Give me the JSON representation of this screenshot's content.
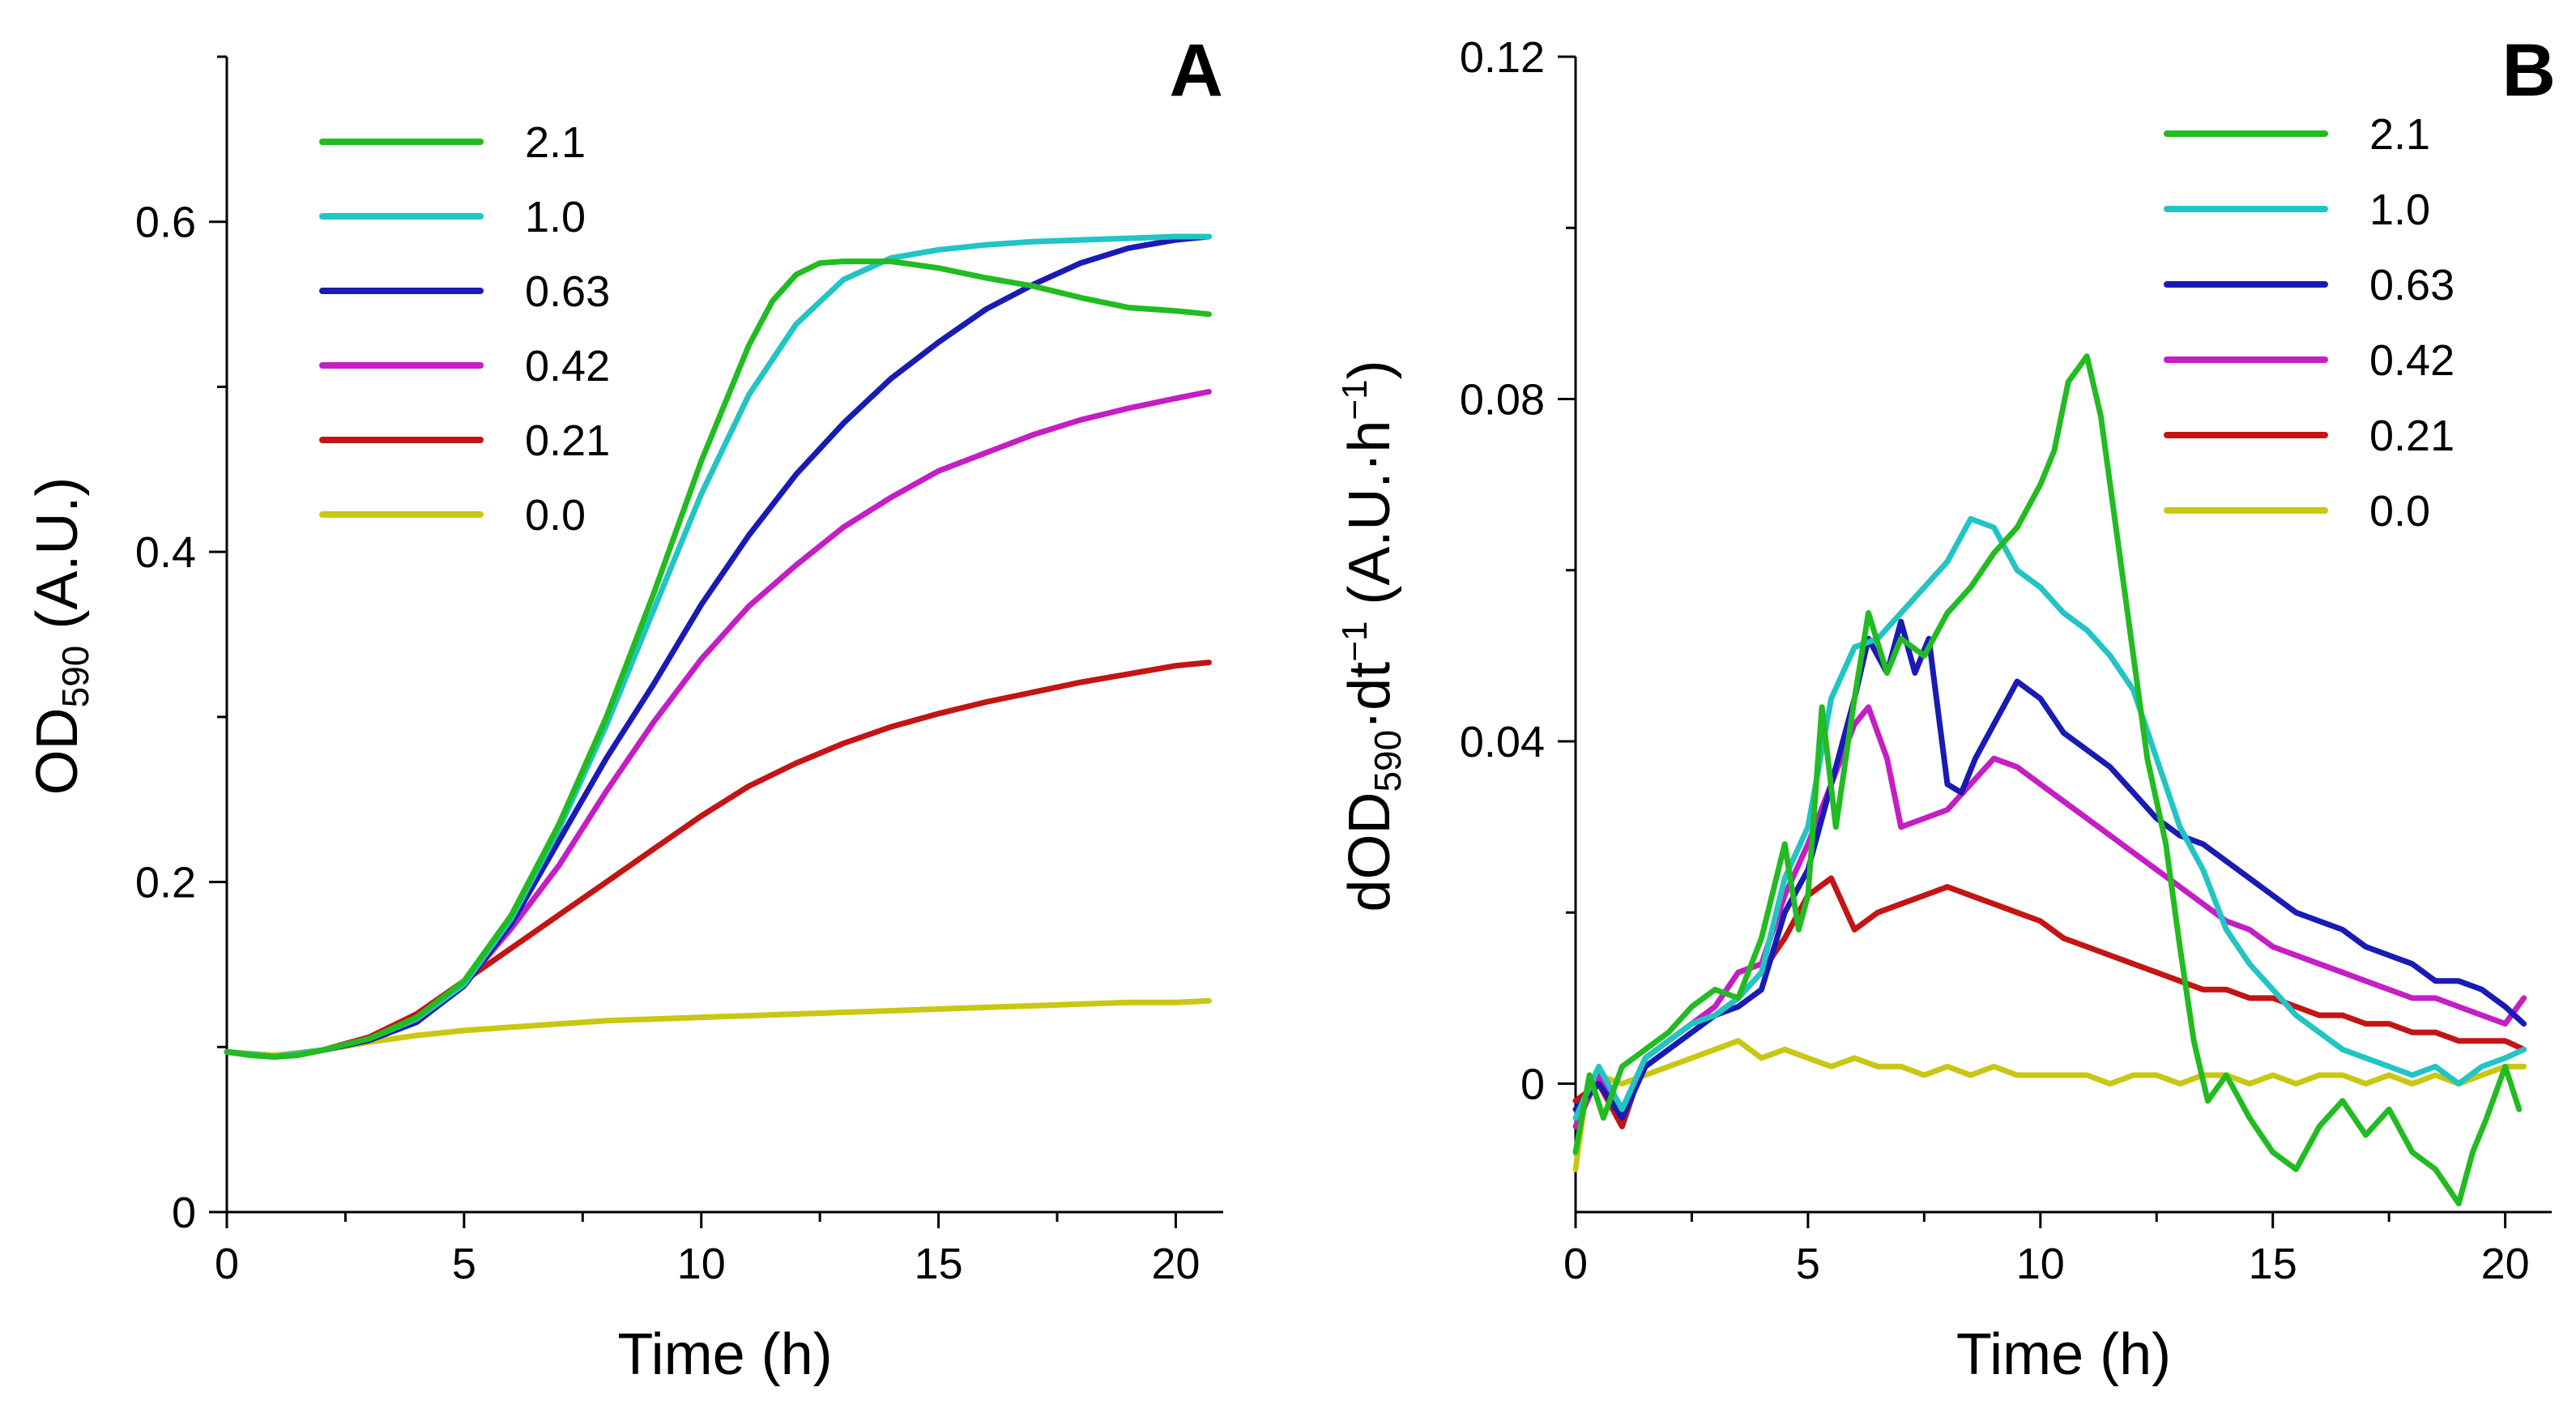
{
  "chart_data": [
    {
      "panel": "A",
      "type": "line",
      "title": "",
      "xlabel": "Time (h)",
      "ylabel": "OD",
      "ylabel_sub": "590",
      "ylabel_suffix": " (A.U.)",
      "xlim": [
        0,
        21
      ],
      "ylim": [
        0,
        0.7
      ],
      "xticks": [
        0,
        5,
        10,
        15,
        20
      ],
      "xtick_labels": [
        "0",
        "5",
        "10",
        "15",
        "20"
      ],
      "xminor": [
        2.5,
        7.5,
        12.5,
        17.5
      ],
      "yticks": [
        0,
        0.2,
        0.4,
        0.6
      ],
      "ytick_labels": [
        "0",
        "0.2",
        "0.4",
        "0.6"
      ],
      "yminor": [
        0.1,
        0.3,
        0.5,
        0.7
      ],
      "legend_position": "top-left",
      "series": [
        {
          "name": "2.1",
          "color": "#22bb22",
          "x": [
            0,
            0.5,
            1,
            1.5,
            2,
            3,
            4,
            5,
            6,
            7,
            8,
            9,
            10,
            10.5,
            11,
            11.5,
            12,
            12.5,
            13,
            14,
            15,
            16,
            17,
            18,
            19,
            20,
            20.7
          ],
          "y": [
            0.097,
            0.095,
            0.094,
            0.095,
            0.098,
            0.105,
            0.118,
            0.14,
            0.18,
            0.235,
            0.3,
            0.375,
            0.455,
            0.49,
            0.525,
            0.552,
            0.568,
            0.575,
            0.576,
            0.576,
            0.572,
            0.566,
            0.561,
            0.554,
            0.548,
            0.546,
            0.544
          ]
        },
        {
          "name": "1.0",
          "color": "#22c4c4",
          "x": [
            0,
            1,
            2,
            3,
            4,
            5,
            6,
            7,
            8,
            9,
            10,
            11,
            12,
            13,
            14,
            15,
            16,
            17,
            18,
            19,
            20,
            20.7
          ],
          "y": [
            0.097,
            0.094,
            0.098,
            0.105,
            0.117,
            0.138,
            0.178,
            0.232,
            0.295,
            0.365,
            0.435,
            0.495,
            0.538,
            0.565,
            0.578,
            0.583,
            0.586,
            0.588,
            0.589,
            0.59,
            0.591,
            0.591
          ]
        },
        {
          "name": "0.63",
          "color": "#1a1ab4",
          "x": [
            0,
            1,
            2,
            3,
            4,
            5,
            6,
            7,
            8,
            9,
            10,
            11,
            12,
            13,
            14,
            15,
            16,
            17,
            18,
            19,
            20,
            20.7
          ],
          "y": [
            0.097,
            0.094,
            0.098,
            0.104,
            0.115,
            0.137,
            0.175,
            0.225,
            0.275,
            0.32,
            0.368,
            0.41,
            0.447,
            0.478,
            0.505,
            0.527,
            0.547,
            0.562,
            0.575,
            0.584,
            0.589,
            0.591
          ]
        },
        {
          "name": "0.42",
          "color": "#c41ec4",
          "x": [
            0,
            1,
            2,
            3,
            4,
            5,
            6,
            7,
            8,
            9,
            10,
            11,
            12,
            13,
            14,
            15,
            16,
            17,
            18,
            19,
            20,
            20.7
          ],
          "y": [
            0.097,
            0.094,
            0.098,
            0.105,
            0.117,
            0.138,
            0.172,
            0.21,
            0.255,
            0.297,
            0.335,
            0.367,
            0.392,
            0.415,
            0.433,
            0.449,
            0.46,
            0.471,
            0.48,
            0.487,
            0.493,
            0.497
          ]
        },
        {
          "name": "0.21",
          "color": "#c41414",
          "x": [
            0,
            1,
            2,
            3,
            4,
            5,
            6,
            7,
            8,
            9,
            10,
            11,
            12,
            13,
            14,
            15,
            16,
            17,
            18,
            19,
            20,
            20.7
          ],
          "y": [
            0.097,
            0.094,
            0.098,
            0.106,
            0.12,
            0.14,
            0.16,
            0.18,
            0.2,
            0.22,
            0.24,
            0.258,
            0.272,
            0.284,
            0.294,
            0.302,
            0.309,
            0.315,
            0.321,
            0.326,
            0.331,
            0.333
          ]
        },
        {
          "name": "0.0",
          "color": "#c8c814",
          "x": [
            0,
            1,
            2,
            3,
            4,
            5,
            6,
            7,
            8,
            9,
            10,
            11,
            12,
            13,
            14,
            15,
            16,
            17,
            18,
            19,
            20,
            20.7
          ],
          "y": [
            0.097,
            0.095,
            0.098,
            0.103,
            0.107,
            0.11,
            0.112,
            0.114,
            0.116,
            0.117,
            0.118,
            0.119,
            0.12,
            0.121,
            0.122,
            0.123,
            0.124,
            0.125,
            0.126,
            0.127,
            0.127,
            0.128
          ]
        }
      ]
    },
    {
      "panel": "B",
      "type": "line",
      "title": "",
      "xlabel": "Time (h)",
      "ylabel": "dOD",
      "ylabel_sub": "590",
      "ylabel_mid": "·dt",
      "ylabel_sup1": "−1",
      "ylabel_mid2": " (A.U.·h",
      "ylabel_sup2": "−1",
      "ylabel_end": ")",
      "xlim": [
        0,
        21
      ],
      "ylim": [
        -0.015,
        0.12
      ],
      "xticks": [
        0,
        5,
        10,
        15,
        20
      ],
      "xtick_labels": [
        "0",
        "5",
        "10",
        "15",
        "20"
      ],
      "xminor": [
        2.5,
        7.5,
        12.5,
        17.5
      ],
      "yticks": [
        0,
        0.04,
        0.08,
        0.12
      ],
      "ytick_labels": [
        "0",
        "0.04",
        "0.08",
        "0.12"
      ],
      "yminor": [
        0.02,
        0.06,
        0.1
      ],
      "legend_position": "top-right",
      "series": [
        {
          "name": "2.1",
          "color": "#22bb22",
          "x": [
            0,
            0.3,
            0.6,
            1,
            1.5,
            2,
            2.5,
            3,
            3.5,
            4,
            4.5,
            4.8,
            5,
            5.3,
            5.6,
            6,
            6.3,
            6.7,
            7,
            7.5,
            8,
            8.5,
            9,
            9.5,
            10,
            10.3,
            10.6,
            11,
            11.3,
            11.7,
            12,
            12.3,
            12.7,
            13,
            13.3,
            13.6,
            14,
            14.5,
            15,
            15.5,
            16,
            16.5,
            17,
            17.5,
            18,
            18.5,
            19,
            19.3,
            19.6,
            20,
            20.3
          ],
          "y": [
            -0.008,
            0.001,
            -0.004,
            0.002,
            0.004,
            0.006,
            0.009,
            0.011,
            0.01,
            0.017,
            0.028,
            0.018,
            0.022,
            0.044,
            0.03,
            0.045,
            0.055,
            0.048,
            0.052,
            0.05,
            0.055,
            0.058,
            0.062,
            0.065,
            0.07,
            0.074,
            0.082,
            0.085,
            0.078,
            0.062,
            0.05,
            0.038,
            0.028,
            0.016,
            0.005,
            -0.002,
            0.001,
            -0.004,
            -0.008,
            -0.01,
            -0.005,
            -0.002,
            -0.006,
            -0.003,
            -0.008,
            -0.01,
            -0.014,
            -0.008,
            -0.004,
            0.002,
            -0.003
          ]
        },
        {
          "name": "1.0",
          "color": "#22c4c4",
          "x": [
            0,
            0.5,
            1,
            1.5,
            2,
            2.5,
            3,
            3.5,
            4,
            4.5,
            5,
            5.5,
            6,
            6.5,
            7,
            7.5,
            8,
            8.5,
            9,
            9.5,
            10,
            10.5,
            11,
            11.5,
            12,
            12.5,
            13,
            13.5,
            14,
            14.5,
            15,
            15.5,
            16,
            16.5,
            17,
            17.5,
            18,
            18.5,
            19,
            19.5,
            20,
            20.4
          ],
          "y": [
            -0.004,
            0.002,
            -0.003,
            0.003,
            0.005,
            0.007,
            0.008,
            0.01,
            0.013,
            0.024,
            0.03,
            0.045,
            0.051,
            0.052,
            0.055,
            0.058,
            0.061,
            0.066,
            0.065,
            0.06,
            0.058,
            0.055,
            0.053,
            0.05,
            0.046,
            0.038,
            0.03,
            0.025,
            0.018,
            0.014,
            0.011,
            0.008,
            0.006,
            0.004,
            0.003,
            0.002,
            0.001,
            0.002,
            0.0,
            0.002,
            0.003,
            0.004
          ]
        },
        {
          "name": "0.63",
          "color": "#1a1ab4",
          "x": [
            0,
            0.5,
            1,
            1.5,
            2,
            2.5,
            3,
            3.5,
            4,
            4.5,
            5,
            5.5,
            6,
            6.3,
            6.7,
            7,
            7.3,
            7.6,
            8,
            8.3,
            8.6,
            9,
            9.5,
            10,
            10.5,
            11,
            11.5,
            12,
            12.5,
            13,
            13.5,
            14,
            14.5,
            15,
            15.5,
            16,
            16.5,
            17,
            17.5,
            18,
            18.5,
            19,
            19.5,
            20,
            20.4
          ],
          "y": [
            -0.003,
            0.0,
            -0.004,
            0.002,
            0.004,
            0.006,
            0.008,
            0.009,
            0.011,
            0.02,
            0.025,
            0.035,
            0.045,
            0.052,
            0.048,
            0.054,
            0.048,
            0.052,
            0.035,
            0.034,
            0.038,
            0.042,
            0.047,
            0.045,
            0.041,
            0.039,
            0.037,
            0.034,
            0.031,
            0.029,
            0.028,
            0.026,
            0.024,
            0.022,
            0.02,
            0.019,
            0.018,
            0.016,
            0.015,
            0.014,
            0.012,
            0.012,
            0.011,
            0.009,
            0.007
          ]
        },
        {
          "name": "0.42",
          "color": "#c41ec4",
          "x": [
            0,
            0.5,
            1,
            1.5,
            2,
            2.5,
            3,
            3.5,
            4,
            4.5,
            5,
            5.5,
            6,
            6.3,
            6.7,
            7,
            7.5,
            8,
            8.5,
            9,
            9.5,
            10,
            10.5,
            11,
            11.5,
            12,
            12.5,
            13,
            13.5,
            14,
            14.5,
            15,
            15.5,
            16,
            16.5,
            17,
            17.5,
            18,
            18.5,
            19,
            19.5,
            20,
            20.4
          ],
          "y": [
            -0.005,
            0.001,
            -0.003,
            0.003,
            0.005,
            0.007,
            0.009,
            0.013,
            0.014,
            0.022,
            0.028,
            0.035,
            0.042,
            0.044,
            0.038,
            0.03,
            0.031,
            0.032,
            0.035,
            0.038,
            0.037,
            0.035,
            0.033,
            0.031,
            0.029,
            0.027,
            0.025,
            0.023,
            0.021,
            0.019,
            0.018,
            0.016,
            0.015,
            0.014,
            0.013,
            0.012,
            0.011,
            0.01,
            0.01,
            0.009,
            0.008,
            0.007,
            0.01
          ]
        },
        {
          "name": "0.21",
          "color": "#c41414",
          "x": [
            0,
            0.5,
            1,
            1.5,
            2,
            2.5,
            3,
            3.5,
            4,
            4.5,
            5,
            5.5,
            6,
            6.5,
            7,
            7.5,
            8,
            8.5,
            9,
            9.5,
            10,
            10.5,
            11,
            11.5,
            12,
            12.5,
            13,
            13.5,
            14,
            14.5,
            15,
            15.5,
            16,
            16.5,
            17,
            17.5,
            18,
            18.5,
            19,
            19.5,
            20,
            20.4
          ],
          "y": [
            -0.002,
            0.0,
            -0.005,
            0.003,
            0.005,
            0.007,
            0.008,
            0.01,
            0.013,
            0.017,
            0.022,
            0.024,
            0.018,
            0.02,
            0.021,
            0.022,
            0.023,
            0.022,
            0.021,
            0.02,
            0.019,
            0.017,
            0.016,
            0.015,
            0.014,
            0.013,
            0.012,
            0.011,
            0.011,
            0.01,
            0.01,
            0.009,
            0.008,
            0.008,
            0.007,
            0.007,
            0.006,
            0.006,
            0.005,
            0.005,
            0.005,
            0.004
          ]
        },
        {
          "name": "0.0",
          "color": "#c8c814",
          "x": [
            0,
            0.2,
            0.5,
            1,
            1.5,
            2,
            2.5,
            3,
            3.5,
            4,
            4.5,
            5,
            5.5,
            6,
            6.5,
            7,
            7.5,
            8,
            8.5,
            9,
            9.5,
            10,
            10.5,
            11,
            11.5,
            12,
            12.5,
            13,
            13.5,
            14,
            14.5,
            15,
            15.5,
            16,
            16.5,
            17,
            17.5,
            18,
            18.5,
            19,
            19.5,
            20,
            20.4
          ],
          "y": [
            -0.01,
            -0.002,
            0.001,
            0.0,
            0.001,
            0.002,
            0.003,
            0.004,
            0.005,
            0.003,
            0.004,
            0.003,
            0.002,
            0.003,
            0.002,
            0.002,
            0.001,
            0.002,
            0.001,
            0.002,
            0.001,
            0.001,
            0.001,
            0.001,
            0.0,
            0.001,
            0.001,
            0.0,
            0.001,
            0.001,
            0.0,
            0.001,
            0.0,
            0.001,
            0.001,
            0.0,
            0.001,
            0.0,
            0.001,
            0.0,
            0.001,
            0.002,
            0.002
          ]
        }
      ]
    }
  ]
}
